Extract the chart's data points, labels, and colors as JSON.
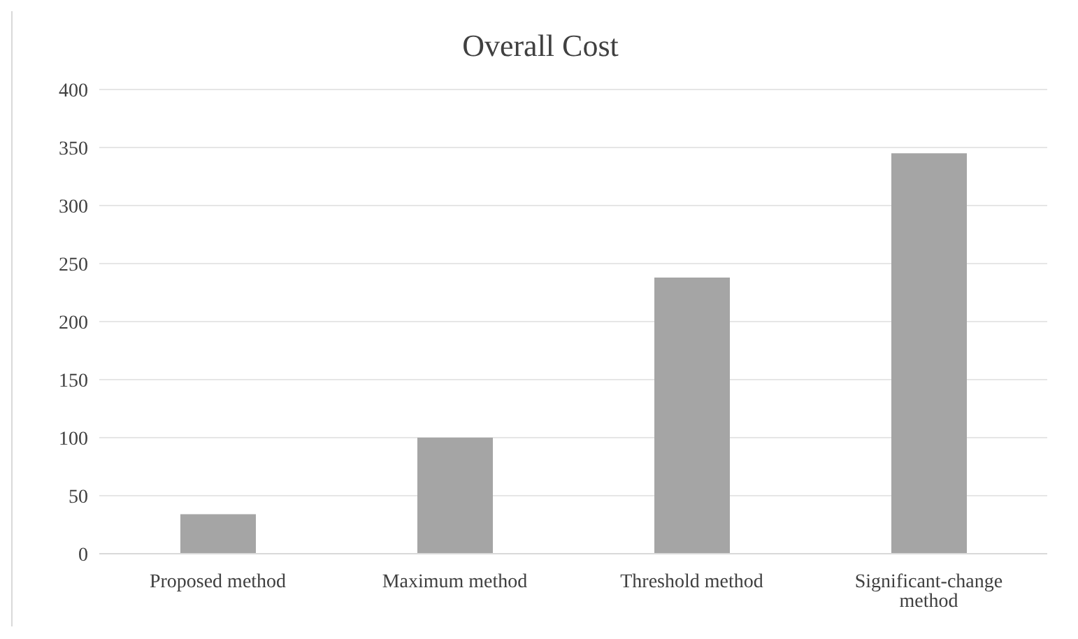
{
  "chart_data": {
    "type": "bar",
    "title": "Overall Cost",
    "categories": [
      "Proposed method",
      "Maximum method",
      "Threshold method",
      "Significant-change method"
    ],
    "values": [
      34,
      100,
      238,
      345
    ],
    "color": "#a5a5a5",
    "ylim": [
      0,
      400
    ],
    "yticks": [
      0,
      50,
      100,
      150,
      200,
      250,
      300,
      350,
      400
    ],
    "grid": "y",
    "legend": false
  }
}
